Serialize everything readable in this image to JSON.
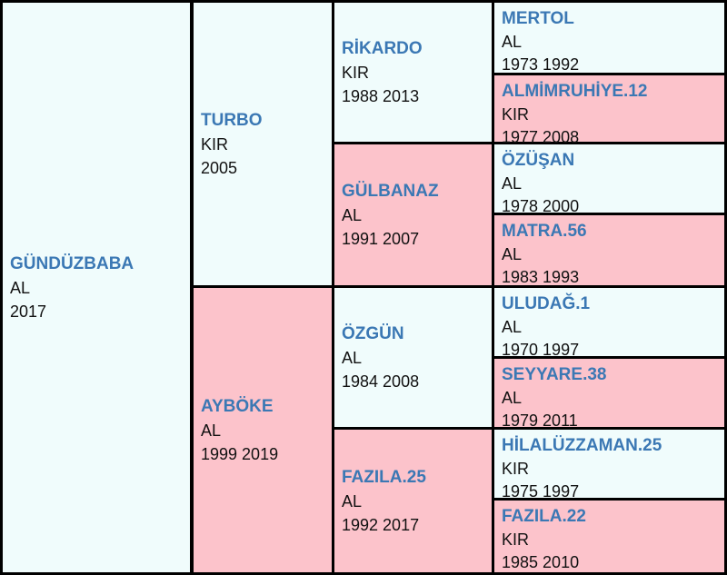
{
  "pedigree": {
    "subject": {
      "name": "GÜNDÜZBABA",
      "color": "AL",
      "years": "2017"
    },
    "sire": {
      "name": "TURBO",
      "color": "KIR",
      "years": "2005"
    },
    "dam": {
      "name": "AYBÖKE",
      "color": "AL",
      "years": "1999 2019"
    },
    "ss": {
      "name": "RİKARDO",
      "color": "KIR",
      "years": "1988 2013"
    },
    "sd": {
      "name": "GÜLBANAZ",
      "color": "AL",
      "years": "1991 2007"
    },
    "ds": {
      "name": "ÖZGÜN",
      "color": "AL",
      "years": "1984 2008"
    },
    "dd": {
      "name": "FAZILA.25",
      "color": "AL",
      "years": "1992 2017"
    },
    "sss": {
      "name": "MERTOL",
      "color": "AL",
      "years": "1973 1992"
    },
    "ssd": {
      "name": "ALMİMRUHİYE.12",
      "color": "KIR",
      "years": "1977 2008"
    },
    "sds": {
      "name": "ÖZÜŞAN",
      "color": "AL",
      "years": "1978 2000"
    },
    "sdd": {
      "name": "MATRA.56",
      "color": "AL",
      "years": "1983 1993"
    },
    "dss": {
      "name": "ULUDAĞ.1",
      "color": "AL",
      "years": "1970 1997"
    },
    "dsd": {
      "name": "SEYYARE.38",
      "color": "AL",
      "years": "1979 2011"
    },
    "dds": {
      "name": "HİLALÜZZAMAN.25",
      "color": "KIR",
      "years": "1975 1997"
    },
    "ddd": {
      "name": "FAZILA.22",
      "color": "KIR",
      "years": "1985 2010"
    }
  },
  "colors": {
    "male_bg": "#f0fcfc",
    "female_bg": "#fcc3cb",
    "name": "#3b78b4",
    "border": "#000000"
  }
}
